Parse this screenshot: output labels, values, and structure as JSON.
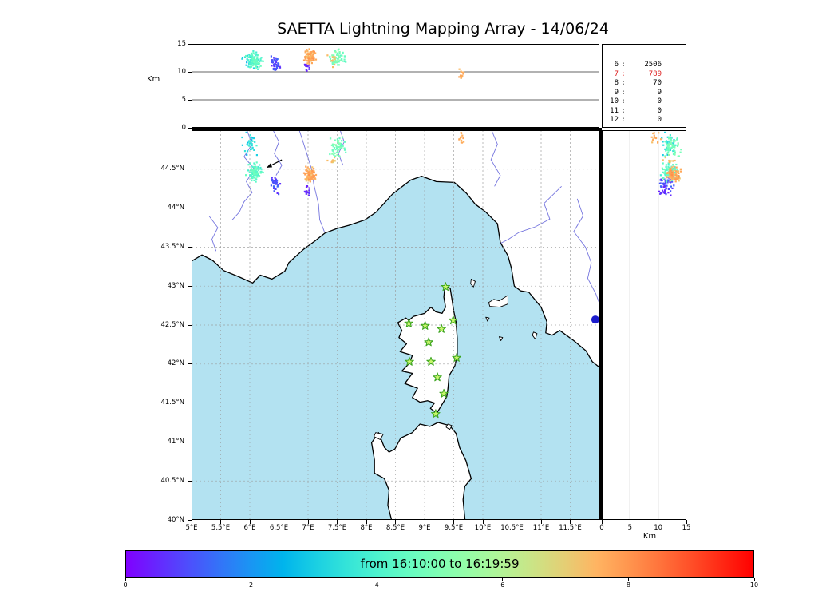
{
  "title": "SAETTA Lightning Mapping Array - 14/06/24",
  "axes": {
    "alt_label": "Km",
    "lat_ticks": [
      {
        "v": 40,
        "label": "40°N"
      },
      {
        "v": 40.5,
        "label": "40.5°N"
      },
      {
        "v": 41,
        "label": "41°N"
      },
      {
        "v": 41.5,
        "label": "41.5°N"
      },
      {
        "v": 42,
        "label": "42°N"
      },
      {
        "v": 42.5,
        "label": "42.5°N"
      },
      {
        "v": 43,
        "label": "43°N"
      },
      {
        "v": 43.5,
        "label": "43.5°N"
      },
      {
        "v": 44,
        "label": "44°N"
      },
      {
        "v": 44.5,
        "label": "44.5°N"
      }
    ],
    "lon_ticks": [
      {
        "v": 5,
        "label": "5°E"
      },
      {
        "v": 5.5,
        "label": "5.5°E"
      },
      {
        "v": 6,
        "label": "6°E"
      },
      {
        "v": 6.5,
        "label": "6.5°E"
      },
      {
        "v": 7,
        "label": "7°E"
      },
      {
        "v": 7.5,
        "label": "7.5°E"
      },
      {
        "v": 8,
        "label": "8°E"
      },
      {
        "v": 8.5,
        "label": "8.5°E"
      },
      {
        "v": 9,
        "label": "9°E"
      },
      {
        "v": 9.5,
        "label": "9.5°E"
      },
      {
        "v": 10,
        "label": "10°E"
      },
      {
        "v": 10.5,
        "label": "10.5°E"
      },
      {
        "v": 11,
        "label": "11°E"
      },
      {
        "v": 11.5,
        "label": "11.5°E"
      }
    ],
    "alt_ticks": [
      {
        "v": 0,
        "label": "0"
      },
      {
        "v": 5,
        "label": "5"
      },
      {
        "v": 10,
        "label": "10"
      },
      {
        "v": 15,
        "label": "15"
      }
    ]
  },
  "colors": {
    "sea": "#b3e2f1",
    "land": "#ffffff",
    "coast": "#000000",
    "river": "#5c5cd8",
    "grid": "#999999",
    "panel_line": "#333333",
    "station_fill": "#c9f56d",
    "station_edge": "#39a31c",
    "stat_highlight": "#dd2020"
  },
  "chart_data": {
    "type": "scatter",
    "title": "SAETTA Lightning Mapping Array - 14/06/24",
    "colormap": "rainbow",
    "time_axis": {
      "min": 0,
      "max": 10,
      "label": "from 16:10:00 to 16:19:59",
      "ticks": [
        "0",
        "2",
        "4",
        "6",
        "8",
        "10"
      ]
    },
    "map_extent": {
      "lon_min": 5,
      "lon_max": 12,
      "lat_min": 40,
      "lat_max": 45
    },
    "alt_axis": {
      "min": 0,
      "max": 15,
      "unit": "Km",
      "gridlines": [
        5,
        10
      ]
    },
    "source_counts": [
      {
        "station": "6",
        "count": "2506"
      },
      {
        "station": "7",
        "count": "789"
      },
      {
        "station": "8",
        "count": "70"
      },
      {
        "station": "9",
        "count": "9"
      },
      {
        "station": "10",
        "count": "0"
      },
      {
        "station": "11",
        "count": "0"
      },
      {
        "station": "12",
        "count": "0"
      }
    ],
    "highlight_station": "7",
    "lightning_clusters": [
      {
        "name": "alps-west-cyan",
        "lon": 6.08,
        "lat": 44.46,
        "dlon": 0.18,
        "dlat": 0.17,
        "alt": 12.0,
        "dalt": 2.2,
        "t": 4.2,
        "dt": 0.8,
        "n": 90
      },
      {
        "name": "alps-west-violet",
        "lon": 6.44,
        "lat": 44.3,
        "dlon": 0.15,
        "dlat": 0.18,
        "alt": 11.5,
        "dalt": 2.2,
        "t": 0.9,
        "dt": 0.8,
        "n": 40
      },
      {
        "name": "alps-north-teal",
        "lon": 6.0,
        "lat": 44.82,
        "dlon": 0.2,
        "dlat": 0.18,
        "alt": 12.0,
        "dalt": 2.0,
        "t": 3.3,
        "dt": 1.0,
        "n": 35
      },
      {
        "name": "piedmont-orange",
        "lon": 7.04,
        "lat": 44.43,
        "dlon": 0.13,
        "dlat": 0.13,
        "alt": 12.8,
        "dalt": 1.8,
        "t": 7.5,
        "dt": 0.8,
        "n": 90
      },
      {
        "name": "piedmont-violet",
        "lon": 7.0,
        "lat": 44.22,
        "dlon": 0.1,
        "dlat": 0.1,
        "alt": 11.0,
        "dalt": 2.0,
        "t": 0.5,
        "dt": 0.4,
        "n": 15
      },
      {
        "name": "piedmont-north-green",
        "lon": 7.5,
        "lat": 44.78,
        "dlon": 0.2,
        "dlat": 0.18,
        "alt": 12.5,
        "dalt": 2.0,
        "t": 4.8,
        "dt": 0.9,
        "n": 55
      },
      {
        "name": "piedmont-north-orange",
        "lon": 7.42,
        "lat": 44.6,
        "dlon": 0.1,
        "dlat": 0.1,
        "alt": 12.0,
        "dalt": 1.5,
        "t": 7.2,
        "dt": 0.5,
        "n": 10
      },
      {
        "name": "liguria-east-orange",
        "lon": 9.63,
        "lat": 44.9,
        "dlon": 0.08,
        "dlat": 0.12,
        "alt": 9.5,
        "dalt": 1.5,
        "t": 7.6,
        "dt": 0.5,
        "n": 14
      }
    ],
    "stations_lonlat": [
      [
        9.36,
        42.99
      ],
      [
        8.73,
        42.52
      ],
      [
        9.01,
        42.49
      ],
      [
        9.29,
        42.45
      ],
      [
        9.49,
        42.56
      ],
      [
        9.07,
        42.28
      ],
      [
        8.74,
        42.03
      ],
      [
        9.11,
        42.03
      ],
      [
        9.55,
        42.08
      ],
      [
        9.22,
        41.83
      ],
      [
        9.33,
        41.62
      ],
      [
        9.19,
        41.36
      ]
    ],
    "point_marker": {
      "lon": 11.93,
      "lat": 42.57,
      "color": "#1c1ccd"
    },
    "arrow_annotation": {
      "from_lonlat": [
        6.55,
        44.62
      ],
      "to_lonlat": [
        6.29,
        44.52
      ]
    },
    "geo": {
      "land": [
        {
          "name": "mainland-france-italy",
          "major": true,
          "points": [
            [
              5.0,
              43.32
            ],
            [
              5.18,
              43.4
            ],
            [
              5.36,
              43.33
            ],
            [
              5.55,
              43.2
            ],
            [
              5.81,
              43.12
            ],
            [
              6.05,
              43.04
            ],
            [
              6.18,
              43.14
            ],
            [
              6.38,
              43.09
            ],
            [
              6.6,
              43.19
            ],
            [
              6.67,
              43.3
            ],
            [
              6.92,
              43.47
            ],
            [
              7.12,
              43.58
            ],
            [
              7.29,
              43.68
            ],
            [
              7.5,
              43.74
            ],
            [
              7.7,
              43.78
            ],
            [
              7.98,
              43.85
            ],
            [
              8.17,
              43.95
            ],
            [
              8.45,
              44.18
            ],
            [
              8.76,
              44.36
            ],
            [
              8.95,
              44.41
            ],
            [
              9.2,
              44.34
            ],
            [
              9.51,
              44.33
            ],
            [
              9.72,
              44.19
            ],
            [
              9.87,
              44.05
            ],
            [
              10.05,
              43.95
            ],
            [
              10.25,
              43.8
            ],
            [
              10.3,
              43.56
            ],
            [
              10.43,
              43.39
            ],
            [
              10.49,
              43.23
            ],
            [
              10.54,
              43.0
            ],
            [
              10.65,
              42.94
            ],
            [
              10.79,
              42.92
            ],
            [
              11.0,
              42.73
            ],
            [
              11.1,
              42.54
            ],
            [
              11.08,
              42.4
            ],
            [
              11.19,
              42.37
            ],
            [
              11.32,
              42.43
            ],
            [
              11.56,
              42.3
            ],
            [
              11.77,
              42.17
            ],
            [
              11.88,
              42.03
            ],
            [
              12.05,
              41.93
            ],
            [
              12.05,
              45.05
            ],
            [
              4.95,
              45.05
            ]
          ]
        },
        {
          "name": "corsica",
          "major": true,
          "points": [
            [
              9.35,
              43.01
            ],
            [
              9.44,
              42.97
            ],
            [
              9.47,
              42.83
            ],
            [
              9.5,
              42.68
            ],
            [
              9.54,
              42.54
            ],
            [
              9.56,
              42.33
            ],
            [
              9.56,
              42.12
            ],
            [
              9.52,
              41.98
            ],
            [
              9.42,
              41.85
            ],
            [
              9.4,
              41.68
            ],
            [
              9.38,
              41.58
            ],
            [
              9.21,
              41.37
            ],
            [
              9.1,
              41.43
            ],
            [
              9.17,
              41.5
            ],
            [
              9.05,
              41.53
            ],
            [
              8.92,
              41.51
            ],
            [
              8.79,
              41.57
            ],
            [
              8.88,
              41.69
            ],
            [
              8.66,
              41.75
            ],
            [
              8.79,
              41.88
            ],
            [
              8.61,
              41.91
            ],
            [
              8.74,
              42.01
            ],
            [
              8.79,
              42.11
            ],
            [
              8.58,
              42.16
            ],
            [
              8.69,
              42.26
            ],
            [
              8.56,
              42.34
            ],
            [
              8.61,
              42.43
            ],
            [
              8.54,
              42.53
            ],
            [
              8.68,
              42.59
            ],
            [
              8.73,
              42.56
            ],
            [
              8.81,
              42.61
            ],
            [
              9.0,
              42.65
            ],
            [
              9.11,
              42.73
            ],
            [
              9.19,
              42.67
            ],
            [
              9.3,
              42.65
            ],
            [
              9.36,
              42.73
            ],
            [
              9.33,
              42.86
            ]
          ]
        },
        {
          "name": "sardinia",
          "major": true,
          "points": [
            [
              9.23,
              41.25
            ],
            [
              9.09,
              41.2
            ],
            [
              8.92,
              41.23
            ],
            [
              8.79,
              41.12
            ],
            [
              8.59,
              41.05
            ],
            [
              8.49,
              40.91
            ],
            [
              8.39,
              40.87
            ],
            [
              8.31,
              40.93
            ],
            [
              8.21,
              41.12
            ],
            [
              8.09,
              40.99
            ],
            [
              8.14,
              40.77
            ],
            [
              8.14,
              40.6
            ],
            [
              8.31,
              40.53
            ],
            [
              8.39,
              40.38
            ],
            [
              8.37,
              40.19
            ],
            [
              8.45,
              39.95
            ],
            [
              9.7,
              39.95
            ],
            [
              9.66,
              40.26
            ],
            [
              9.69,
              40.43
            ],
            [
              9.8,
              40.53
            ],
            [
              9.71,
              40.76
            ],
            [
              9.6,
              40.93
            ],
            [
              9.54,
              41.11
            ],
            [
              9.43,
              41.21
            ]
          ]
        },
        {
          "name": "elba",
          "major": false,
          "points": [
            [
              10.1,
              42.79
            ],
            [
              10.19,
              42.83
            ],
            [
              10.28,
              42.81
            ],
            [
              10.43,
              42.88
            ],
            [
              10.43,
              42.77
            ],
            [
              10.29,
              42.73
            ],
            [
              10.12,
              42.74
            ]
          ]
        },
        {
          "name": "capraia",
          "major": false,
          "points": [
            [
              9.8,
              43.09
            ],
            [
              9.87,
              43.06
            ],
            [
              9.84,
              42.99
            ],
            [
              9.79,
              43.03
            ]
          ]
        },
        {
          "name": "giglio",
          "major": false,
          "points": [
            [
              10.87,
              42.41
            ],
            [
              10.93,
              42.39
            ],
            [
              10.9,
              42.32
            ],
            [
              10.85,
              42.37
            ]
          ]
        },
        {
          "name": "montecristo",
          "major": false,
          "points": [
            [
              10.28,
              42.35
            ],
            [
              10.34,
              42.34
            ],
            [
              10.31,
              42.3
            ]
          ]
        },
        {
          "name": "pianosa",
          "major": false,
          "points": [
            [
              10.05,
              42.6
            ],
            [
              10.11,
              42.59
            ],
            [
              10.08,
              42.55
            ]
          ]
        },
        {
          "name": "asinara",
          "major": false,
          "points": [
            [
              8.16,
              41.12
            ],
            [
              8.29,
              41.1
            ],
            [
              8.24,
              41.03
            ],
            [
              8.13,
              41.07
            ]
          ]
        },
        {
          "name": "maddalena",
          "major": false,
          "points": [
            [
              9.4,
              41.23
            ],
            [
              9.47,
              41.21
            ],
            [
              9.43,
              41.16
            ],
            [
              9.37,
              41.19
            ]
          ]
        }
      ],
      "rivers": [
        [
          [
            5.95,
            45.0
          ],
          [
            6.04,
            44.82
          ],
          [
            5.9,
            44.66
          ],
          [
            6.08,
            44.5
          ],
          [
            5.94,
            44.34
          ],
          [
            6.04,
            44.2
          ],
          [
            5.9,
            44.08
          ],
          [
            5.82,
            43.95
          ],
          [
            5.7,
            43.85
          ]
        ],
        [
          [
            6.4,
            45.0
          ],
          [
            6.5,
            44.85
          ],
          [
            6.42,
            44.7
          ],
          [
            6.55,
            44.55
          ],
          [
            6.45,
            44.42
          ]
        ],
        [
          [
            6.85,
            45.0
          ],
          [
            6.97,
            44.72
          ],
          [
            7.06,
            44.5
          ],
          [
            7.1,
            44.3
          ],
          [
            7.18,
            44.05
          ],
          [
            7.2,
            43.85
          ],
          [
            7.28,
            43.7
          ]
        ],
        [
          [
            7.55,
            45.0
          ],
          [
            7.62,
            44.85
          ],
          [
            7.52,
            44.7
          ],
          [
            7.6,
            44.55
          ]
        ],
        [
          [
            10.15,
            45.0
          ],
          [
            10.25,
            44.82
          ],
          [
            10.14,
            44.62
          ],
          [
            10.3,
            44.42
          ],
          [
            10.2,
            44.28
          ]
        ],
        [
          [
            11.35,
            44.28
          ],
          [
            11.05,
            44.06
          ],
          [
            11.15,
            43.86
          ],
          [
            10.9,
            43.76
          ],
          [
            10.62,
            43.69
          ],
          [
            10.44,
            43.6
          ],
          [
            10.31,
            43.55
          ]
        ],
        [
          [
            11.62,
            44.12
          ],
          [
            11.72,
            43.9
          ],
          [
            11.56,
            43.7
          ],
          [
            11.76,
            43.5
          ],
          [
            11.86,
            43.3
          ],
          [
            11.8,
            43.1
          ],
          [
            11.94,
            42.9
          ],
          [
            12.0,
            42.78
          ]
        ],
        [
          [
            5.3,
            43.9
          ],
          [
            5.45,
            43.75
          ],
          [
            5.35,
            43.6
          ],
          [
            5.42,
            43.45
          ]
        ]
      ]
    }
  }
}
